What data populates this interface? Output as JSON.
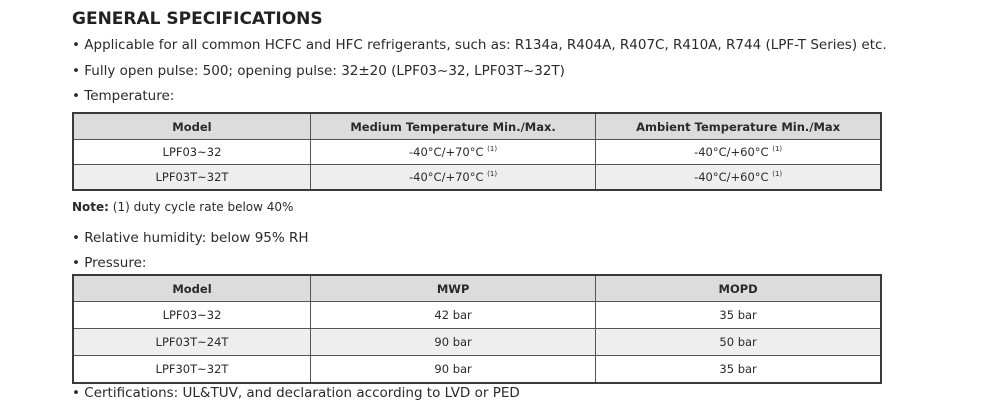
{
  "title": "GENERAL SPECIFICATIONS",
  "bullets_top": [
    "Applicable for all common HCFC and HFC refrigerants, such as: R134a, R404A, R407C, R410A, R744 (LPF-T Series) etc.",
    "Fully open pulse: 500; opening pulse: 32±20 (LPF03~32, LPF03T~32T)",
    "Temperature:"
  ],
  "temperature_table": {
    "header": [
      "Model",
      "Medium Temperature Min./Max.",
      "Ambient Temperature Min./Max"
    ],
    "rows": [
      [
        "LPF03~32",
        {
          "text": "-40°C/+70°C",
          "note": "(1)"
        },
        {
          "text": "-40°C/+60°C",
          "note": "(1)"
        }
      ],
      [
        "LPF03T~32T",
        {
          "text": "-40°C/+70°C",
          "note": "(1)"
        },
        {
          "text": "-40°C/+60°C",
          "note": "(1)"
        }
      ]
    ]
  },
  "note": {
    "label": "Note:",
    "text": "(1) duty cycle rate below 40%"
  },
  "bullets_middle": [
    "Relative humidity: below 95% RH",
    "Pressure:"
  ],
  "pressure_table": {
    "header": [
      "Model",
      "MWP",
      "MOPD"
    ],
    "rows": [
      [
        "LPF03~32",
        "42 bar",
        "35 bar"
      ],
      [
        "LPF03T~24T",
        "90 bar",
        "50 bar"
      ],
      [
        "LPF30T~32T",
        "90 bar",
        "35 bar"
      ]
    ]
  },
  "bullets_bottom": [
    "Certifications: UL&TUV, and declaration according to LVD or PED"
  ]
}
